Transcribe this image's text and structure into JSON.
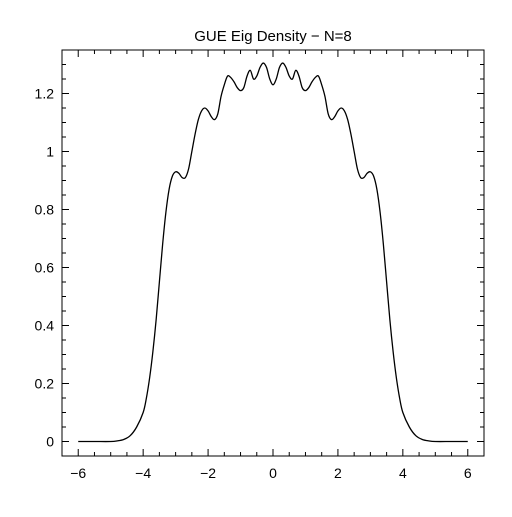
{
  "chart_data": {
    "type": "line",
    "title": "GUE Eig Density − N=8",
    "xlabel": "",
    "ylabel": "",
    "xlim": [
      -6.5,
      6.5
    ],
    "ylim": [
      -0.05,
      1.35
    ],
    "grid": false,
    "legend": "none",
    "x_ticks": [
      -6,
      -4,
      -2,
      0,
      2,
      4,
      6
    ],
    "x_tick_labels": [
      "−6",
      "−4",
      "−2",
      "0",
      "2",
      "4",
      "6"
    ],
    "y_ticks": [
      0,
      0.2,
      0.4,
      0.6,
      0.8,
      1,
      1.2
    ],
    "y_tick_labels": [
      "0",
      "0.2",
      "0.4",
      "0.6",
      "0.8",
      "1",
      "1.2"
    ],
    "line_color": "#000000",
    "series": [
      {
        "x": [
          -6.0,
          -5.5,
          -5.0,
          -4.8,
          -4.6,
          -4.4,
          -4.2,
          -4.0,
          -3.9,
          -3.8,
          -3.7,
          -3.6,
          -3.5,
          -3.4,
          -3.3,
          -3.2,
          -3.1,
          -3.0,
          -2.9,
          -2.8,
          -2.7,
          -2.6,
          -2.5,
          -2.4,
          -2.3,
          -2.2,
          -2.1,
          -2.0,
          -1.9,
          -1.8,
          -1.7,
          -1.6,
          -1.5,
          -1.4,
          -1.3,
          -1.2,
          -1.1,
          -1.0,
          -0.9,
          -0.8,
          -0.7,
          -0.6,
          -0.5,
          -0.4,
          -0.3,
          -0.2,
          -0.1,
          0.0,
          0.1,
          0.2,
          0.3,
          0.4,
          0.5,
          0.6,
          0.7,
          0.8,
          0.9,
          1.0,
          1.1,
          1.2,
          1.3,
          1.4,
          1.5,
          1.6,
          1.7,
          1.8,
          1.9,
          2.0,
          2.1,
          2.2,
          2.3,
          2.4,
          2.5,
          2.6,
          2.7,
          2.8,
          2.9,
          3.0,
          3.1,
          3.2,
          3.3,
          3.4,
          3.5,
          3.6,
          3.7,
          3.8,
          3.9,
          4.0,
          4.2,
          4.4,
          4.6,
          4.8,
          5.0,
          5.5,
          6.0
        ],
        "y": [
          0.0,
          0.0,
          0.0,
          0.002,
          0.007,
          0.02,
          0.05,
          0.1,
          0.15,
          0.22,
          0.31,
          0.42,
          0.55,
          0.68,
          0.79,
          0.87,
          0.915,
          0.93,
          0.925,
          0.91,
          0.91,
          0.94,
          1.0,
          1.06,
          1.11,
          1.14,
          1.15,
          1.14,
          1.12,
          1.11,
          1.13,
          1.19,
          1.23,
          1.26,
          1.255,
          1.24,
          1.22,
          1.21,
          1.22,
          1.26,
          1.28,
          1.25,
          1.26,
          1.29,
          1.305,
          1.29,
          1.25,
          1.23,
          1.25,
          1.29,
          1.305,
          1.29,
          1.26,
          1.25,
          1.28,
          1.26,
          1.22,
          1.21,
          1.22,
          1.24,
          1.255,
          1.26,
          1.23,
          1.19,
          1.13,
          1.11,
          1.12,
          1.14,
          1.15,
          1.14,
          1.11,
          1.06,
          1.0,
          0.94,
          0.91,
          0.91,
          0.925,
          0.93,
          0.915,
          0.87,
          0.79,
          0.68,
          0.55,
          0.42,
          0.31,
          0.22,
          0.15,
          0.1,
          0.05,
          0.02,
          0.007,
          0.002,
          0.0,
          0.0,
          0.0
        ]
      }
    ]
  }
}
